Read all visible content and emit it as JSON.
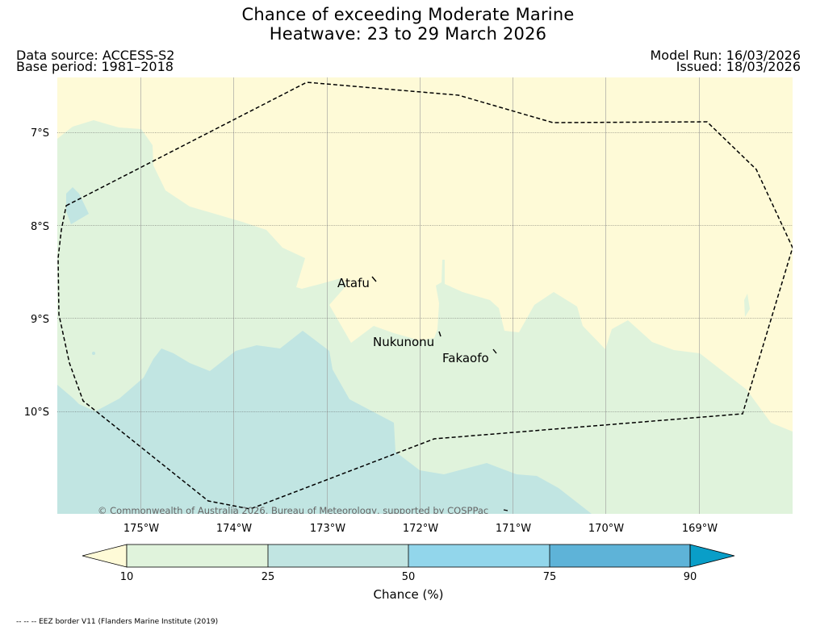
{
  "title": {
    "line1": "Chance of exceeding Moderate Marine",
    "line2": "Heatwave: 23 to 29 March 2026"
  },
  "meta": {
    "data_source": "Data source: ACCESS-S2",
    "base_period": "Base period: 1981–2018",
    "model_run": "Model Run: 16/03/2026",
    "issued": "Issued: 18/03/2026"
  },
  "map": {
    "lat_labels": [
      "7°S",
      "8°S",
      "9°S",
      "10°S"
    ],
    "lon_labels": [
      "175°W",
      "174°W",
      "173°W",
      "172°W",
      "171°W",
      "170°W",
      "169°W"
    ],
    "places": [
      "Atafu",
      "Nukunonu",
      "Fakaofo"
    ],
    "copyright": "© Commonwealth of Australia 2026, Bureau of Meteorology, supported by COSPPac"
  },
  "legend": {
    "ticks": [
      "10",
      "25",
      "50",
      "75",
      "90"
    ],
    "title": "Chance (%)",
    "colors": {
      "below_10": "#fefad7",
      "10_25": "#e0f3dc",
      "25_50": "#c1e5e2",
      "50_75": "#92d6eb",
      "75_90": "#5eb3d8",
      "above_90": "#099ec8"
    }
  },
  "footnote": "-- -- -- EEZ border V11 (Flanders Marine Institute (2019)"
}
